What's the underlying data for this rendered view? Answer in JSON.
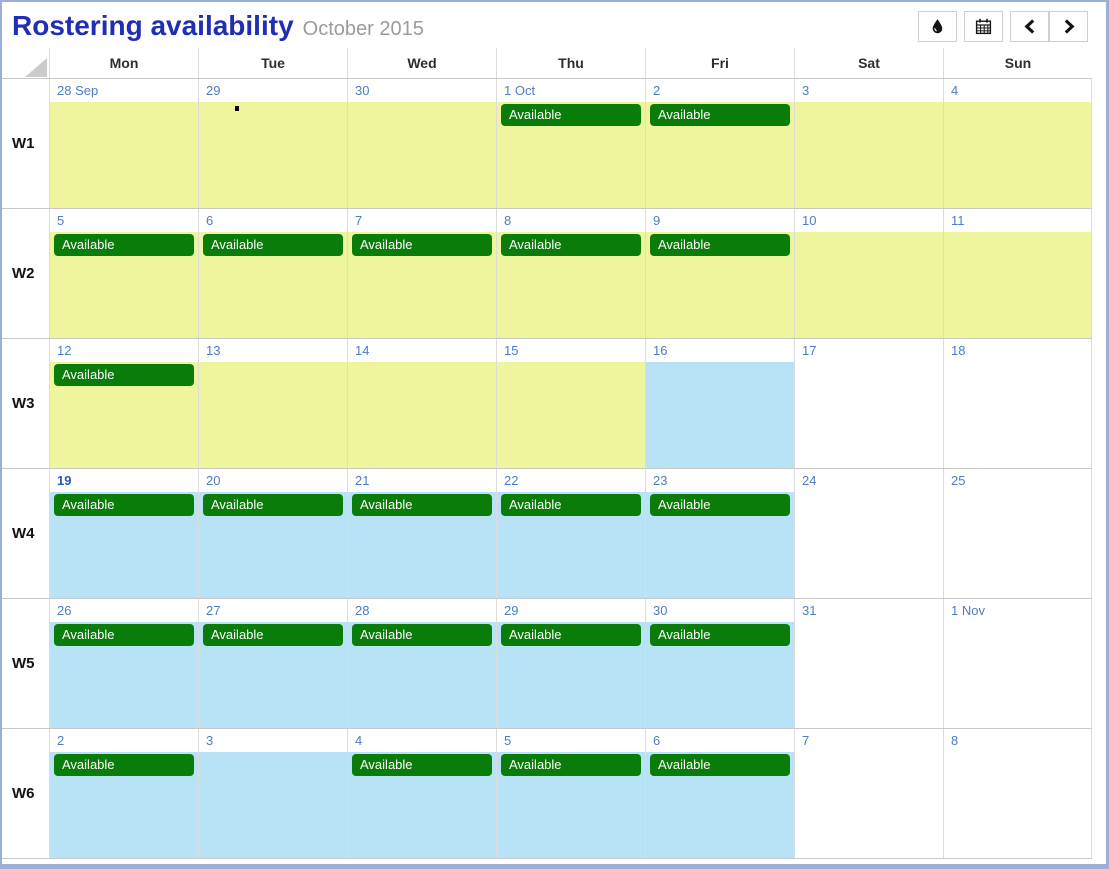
{
  "header": {
    "title": "Rostering availability",
    "subtitle": "October 2015",
    "toolbar": {
      "buttons": [
        {
          "icon": "droplet-icon"
        },
        {
          "icon": "calendar-icon"
        },
        {
          "icon": "chevron-left-icon"
        },
        {
          "icon": "chevron-right-icon"
        }
      ]
    }
  },
  "calendar": {
    "day_headers": [
      "Mon",
      "Tue",
      "Wed",
      "Thu",
      "Fri",
      "Sat",
      "Sun"
    ],
    "badge_label": "Available",
    "colors": {
      "title_blue": "#1f2eb2",
      "date_text": "#4c7cc4",
      "available_badge_green": "#0a7c0a",
      "yellow_day": "#eef59d",
      "blue_day": "#b8e2f5",
      "white_day": "#ffffff",
      "window_border": "#9bafd8"
    },
    "weeks": [
      {
        "label": "W1",
        "days": [
          {
            "date": "28 Sep",
            "bg": "yellow"
          },
          {
            "date": "29",
            "bg": "yellow",
            "mark": true
          },
          {
            "date": "30",
            "bg": "yellow"
          },
          {
            "date": "1 Oct",
            "bg": "yellow",
            "available": true
          },
          {
            "date": "2",
            "bg": "yellow",
            "available": true
          },
          {
            "date": "3",
            "bg": "yellow"
          },
          {
            "date": "4",
            "bg": "yellow"
          }
        ]
      },
      {
        "label": "W2",
        "days": [
          {
            "date": "5",
            "bg": "yellow",
            "available": true
          },
          {
            "date": "6",
            "bg": "yellow",
            "available": true
          },
          {
            "date": "7",
            "bg": "yellow",
            "available": true
          },
          {
            "date": "8",
            "bg": "yellow",
            "available": true
          },
          {
            "date": "9",
            "bg": "yellow",
            "available": true
          },
          {
            "date": "10",
            "bg": "yellow"
          },
          {
            "date": "11",
            "bg": "yellow"
          }
        ]
      },
      {
        "label": "W3",
        "days": [
          {
            "date": "12",
            "bg": "yellow",
            "available": true
          },
          {
            "date": "13",
            "bg": "yellow"
          },
          {
            "date": "14",
            "bg": "yellow"
          },
          {
            "date": "15",
            "bg": "yellow"
          },
          {
            "date": "16",
            "bg": "blue"
          },
          {
            "date": "17",
            "bg": "white"
          },
          {
            "date": "18",
            "bg": "white"
          }
        ]
      },
      {
        "label": "W4",
        "days": [
          {
            "date": "19",
            "bg": "blue",
            "available": true,
            "emphasis": true
          },
          {
            "date": "20",
            "bg": "blue",
            "available": true
          },
          {
            "date": "21",
            "bg": "blue",
            "available": true
          },
          {
            "date": "22",
            "bg": "blue",
            "available": true
          },
          {
            "date": "23",
            "bg": "blue",
            "available": true
          },
          {
            "date": "24",
            "bg": "white"
          },
          {
            "date": "25",
            "bg": "white"
          }
        ]
      },
      {
        "label": "W5",
        "days": [
          {
            "date": "26",
            "bg": "blue",
            "available": true
          },
          {
            "date": "27",
            "bg": "blue",
            "available": true
          },
          {
            "date": "28",
            "bg": "blue",
            "available": true
          },
          {
            "date": "29",
            "bg": "blue",
            "available": true
          },
          {
            "date": "30",
            "bg": "blue",
            "available": true
          },
          {
            "date": "31",
            "bg": "white"
          },
          {
            "date": "1 Nov",
            "bg": "white"
          }
        ]
      },
      {
        "label": "W6",
        "days": [
          {
            "date": "2",
            "bg": "blue",
            "available": true
          },
          {
            "date": "3",
            "bg": "blue"
          },
          {
            "date": "4",
            "bg": "blue",
            "available": true
          },
          {
            "date": "5",
            "bg": "blue",
            "available": true
          },
          {
            "date": "6",
            "bg": "blue",
            "available": true
          },
          {
            "date": "7",
            "bg": "white"
          },
          {
            "date": "8",
            "bg": "white"
          }
        ]
      }
    ]
  }
}
